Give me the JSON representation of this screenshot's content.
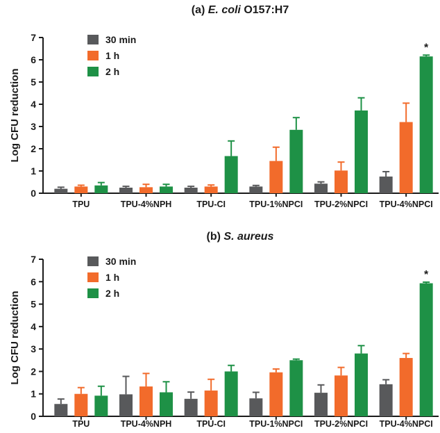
{
  "chart_data": [
    {
      "type": "bar",
      "title_prefix": "(a) ",
      "title_italic": "E. coli",
      "title_suffix": " O157:H7",
      "ylabel": "Log CFU reduction",
      "xlabel": "",
      "ylim": [
        0,
        7
      ],
      "yticks": [
        "0",
        "1",
        "2",
        "3",
        "4",
        "5",
        "6",
        "7"
      ],
      "categories": [
        "TPU",
        "TPU-4%NPH",
        "TPU-CI",
        "TPU-1%NPCI",
        "TPU-2%NPCI",
        "TPU-4%NPCI"
      ],
      "legend_position": "top-left",
      "grid": false,
      "series": [
        {
          "name": "30 min",
          "color": "#58595b",
          "values": [
            0.2,
            0.25,
            0.25,
            0.3,
            0.43,
            0.75
          ],
          "errors": [
            0.07,
            0.06,
            0.06,
            0.05,
            0.08,
            0.22
          ]
        },
        {
          "name": "1 h",
          "color": "#f26b2b",
          "values": [
            0.3,
            0.27,
            0.3,
            1.45,
            1.02,
            3.2
          ],
          "errors": [
            0.06,
            0.13,
            0.07,
            0.62,
            0.38,
            0.85
          ]
        },
        {
          "name": "2 h",
          "color": "#1e9146",
          "values": [
            0.35,
            0.3,
            1.67,
            2.85,
            3.72,
            6.15
          ],
          "errors": [
            0.13,
            0.1,
            0.68,
            0.55,
            0.57,
            0.06
          ]
        }
      ],
      "annotations": [
        {
          "category": "TPU-4%NPCI",
          "series": "2 h",
          "text": "*"
        }
      ]
    },
    {
      "type": "bar",
      "title_prefix": "(b) ",
      "title_italic": "S. aureus",
      "title_suffix": "",
      "ylabel": "Log CFU reduction",
      "xlabel": "",
      "ylim": [
        0,
        7
      ],
      "yticks": [
        "0",
        "1",
        "2",
        "3",
        "4",
        "5",
        "6",
        "7"
      ],
      "categories": [
        "TPU",
        "TPU-4%NPH",
        "TPU-CI",
        "TPU-1%NPCI",
        "TPU-2%NPCI",
        "TPU-4%NPCI"
      ],
      "legend_position": "top-left",
      "grid": false,
      "series": [
        {
          "name": "30 min",
          "color": "#58595b",
          "values": [
            0.55,
            0.98,
            0.78,
            0.8,
            1.05,
            1.43
          ],
          "errors": [
            0.22,
            0.8,
            0.3,
            0.27,
            0.35,
            0.2
          ]
        },
        {
          "name": "1 h",
          "color": "#f26b2b",
          "values": [
            1.0,
            1.33,
            1.15,
            1.96,
            1.82,
            2.6
          ],
          "errors": [
            0.28,
            0.58,
            0.5,
            0.15,
            0.36,
            0.2
          ]
        },
        {
          "name": "2 h",
          "color": "#1e9146",
          "values": [
            0.92,
            1.07,
            2.0,
            2.5,
            2.8,
            5.93
          ],
          "errors": [
            0.42,
            0.47,
            0.27,
            0.05,
            0.35,
            0.05
          ]
        }
      ],
      "annotations": [
        {
          "category": "TPU-4%NPCI",
          "series": "2 h",
          "text": "*"
        }
      ]
    }
  ]
}
